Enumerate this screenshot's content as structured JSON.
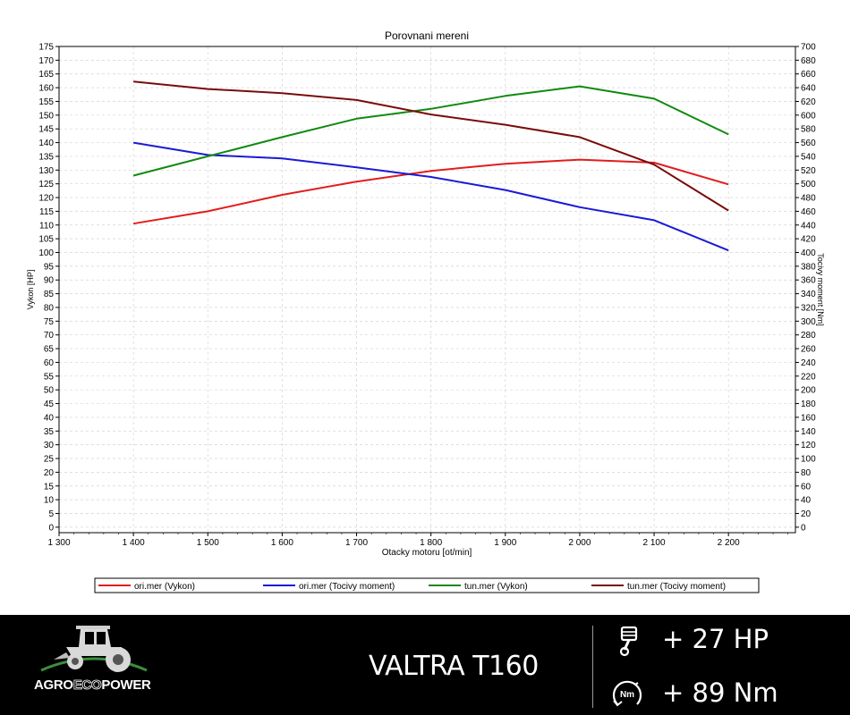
{
  "chart_data": {
    "type": "line",
    "title": "Porovnani mereni",
    "xlabel": "Otacky motoru [ot/min]",
    "ylabel_left": "Vykon [HP]",
    "ylabel_right": "Tocivy moment [Nm]",
    "xlim": [
      1300,
      2290
    ],
    "ylim_left": [
      -2,
      175
    ],
    "ylim_right": [
      -8,
      700
    ],
    "x_ticks": [
      1300,
      1400,
      1500,
      1600,
      1700,
      1800,
      1900,
      2000,
      2100,
      2200
    ],
    "x_tick_labels": [
      "1 300",
      "1 400",
      "1 500",
      "1 600",
      "1 700",
      "1 800",
      "1 900",
      "2 000",
      "2 100",
      "2 200"
    ],
    "y_left_ticks": [
      0,
      5,
      10,
      15,
      20,
      25,
      30,
      35,
      40,
      45,
      50,
      55,
      60,
      65,
      70,
      75,
      80,
      85,
      90,
      95,
      100,
      105,
      110,
      115,
      120,
      125,
      130,
      135,
      140,
      145,
      150,
      155,
      160,
      165,
      170,
      175
    ],
    "y_right_ticks": [
      0,
      20,
      40,
      60,
      80,
      100,
      120,
      140,
      160,
      180,
      200,
      220,
      240,
      260,
      280,
      300,
      320,
      340,
      360,
      380,
      400,
      420,
      440,
      460,
      480,
      500,
      520,
      540,
      560,
      580,
      600,
      620,
      640,
      660,
      680,
      700
    ],
    "grid": true,
    "legend_position": "bottom",
    "x": [
      1400,
      1500,
      1600,
      1700,
      1800,
      1900,
      2000,
      2100,
      2200
    ],
    "series": [
      {
        "name": "ori.mer  (Vykon)",
        "axis": "left",
        "color": "#e31c1c",
        "values": [
          110.5,
          115,
          121,
          125.8,
          129.7,
          132.3,
          133.8,
          132.7,
          124.8
        ]
      },
      {
        "name": "ori.mer  (Tocivy moment)",
        "axis": "right",
        "color": "#1a1ad6",
        "values": [
          560,
          542,
          537,
          524,
          510,
          491,
          466,
          447,
          403
        ]
      },
      {
        "name": "tun.mer  (Vykon)",
        "axis": "left",
        "color": "#118a11",
        "values": [
          128,
          135,
          142,
          148.7,
          152.3,
          157,
          160.5,
          156,
          143
        ]
      },
      {
        "name": "tun.mer  (Tocivy moment)",
        "axis": "right",
        "color": "#7a0b0b",
        "values": [
          649,
          638,
          632,
          622,
          601,
          586,
          568,
          528,
          461
        ]
      }
    ]
  },
  "footer": {
    "brand": {
      "part1": "AGRO",
      "part2": "ECO",
      "part3": "POWER"
    },
    "model": "VALTRA T160",
    "power_gain": "+ 27 HP",
    "torque_gain": "+ 89 Nm",
    "torque_icon_label": "Nm",
    "power_icon": "piston-icon",
    "torque_icon": "torque-gauge-icon",
    "logo_icon": "tractor-icon",
    "colors": {
      "background": "#000000",
      "text": "#ffffff",
      "logo_eco": "#2e8b57"
    }
  }
}
